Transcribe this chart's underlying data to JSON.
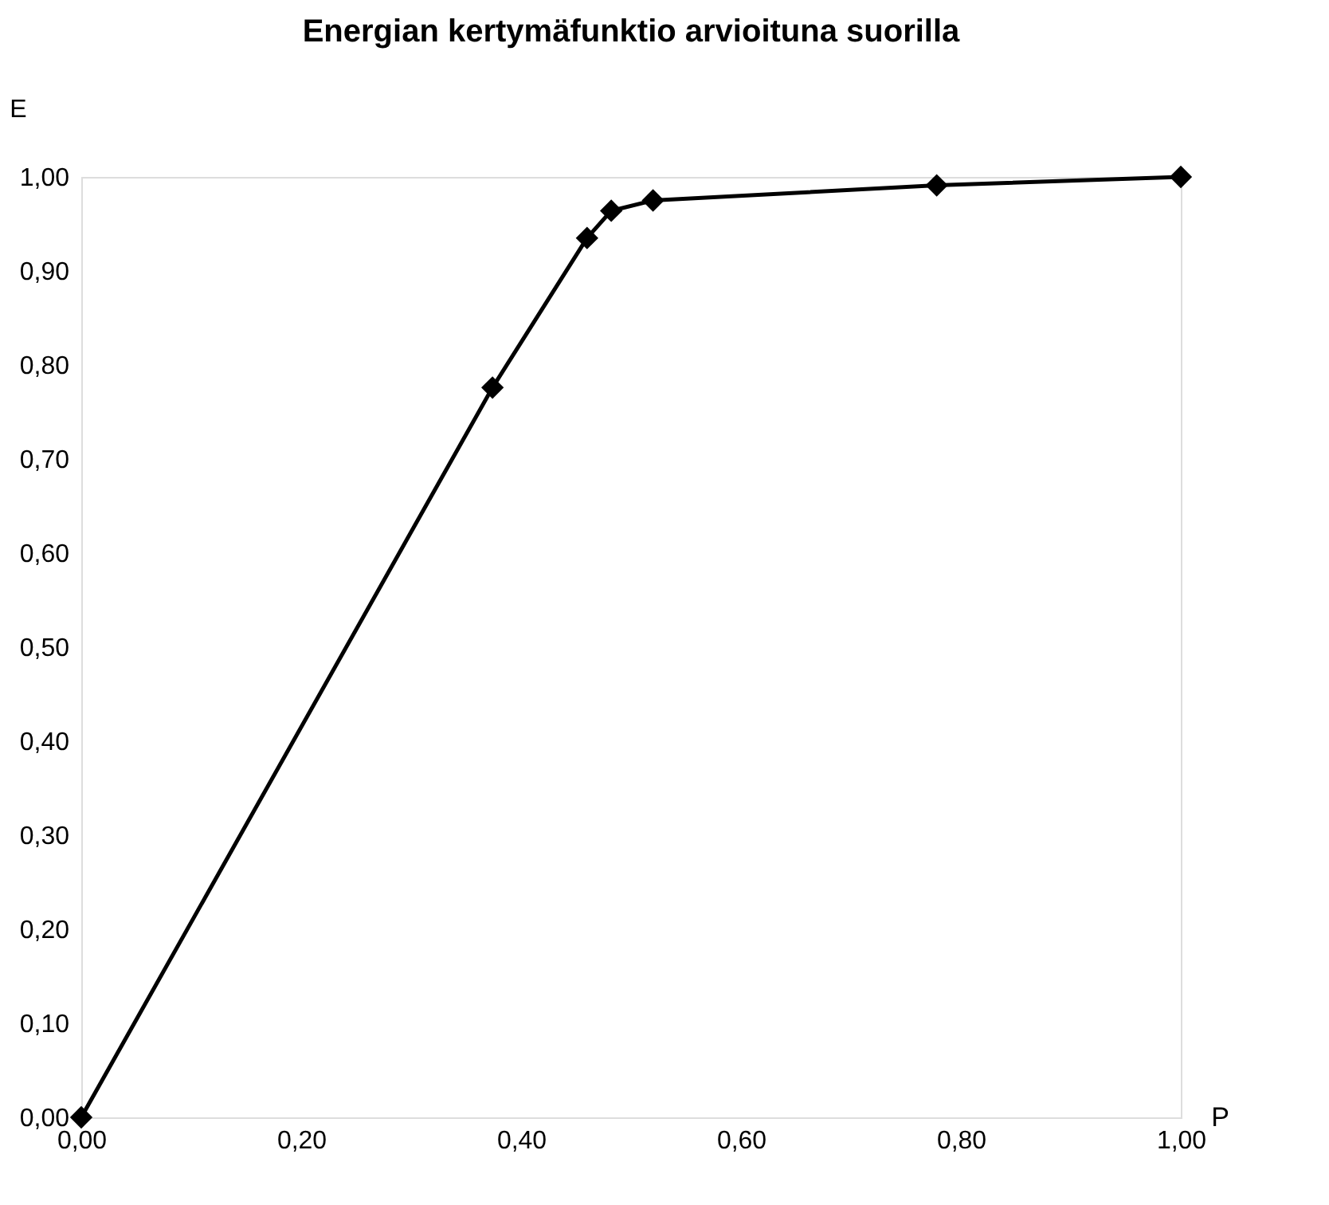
{
  "chart_data": {
    "type": "line",
    "title": "Energian kertymäfunktio arvioituna suorilla",
    "xlabel": "P",
    "ylabel": "E",
    "x": [
      0,
      0.374,
      0.46,
      0.482,
      0.52,
      0.778,
      1.0
    ],
    "series": [
      {
        "color": "#000000",
        "values": [
          0,
          0.776,
          0.935,
          0.964,
          0.975,
          0.991,
          1.0
        ]
      }
    ],
    "xlim": [
      0,
      1
    ],
    "xticks": [
      {
        "value": 0,
        "label": "0,00"
      },
      {
        "value": 0.2,
        "label": "0,20"
      },
      {
        "value": 0.4,
        "label": "0,40"
      },
      {
        "value": 0.6,
        "label": "0,60"
      },
      {
        "value": 0.8,
        "label": "0,80"
      },
      {
        "value": 1,
        "label": "1,00"
      }
    ],
    "ylim": [
      0,
      1
    ],
    "yticks": [
      {
        "value": 0,
        "label": "0,00"
      },
      {
        "value": 0.1,
        "label": "0,10"
      },
      {
        "value": 0.2,
        "label": "0,20"
      },
      {
        "value": 0.3,
        "label": "0,30"
      },
      {
        "value": 0.4,
        "label": "0,40"
      },
      {
        "value": 0.5,
        "label": "0,50"
      },
      {
        "value": 0.6,
        "label": "0,60"
      },
      {
        "value": 0.7,
        "label": "0,70"
      },
      {
        "value": 0.8,
        "label": "0,80"
      },
      {
        "value": 0.9,
        "label": "0,90"
      },
      {
        "value": 1,
        "label": "1,00"
      }
    ],
    "grid": false,
    "marker": "diamond",
    "line_style": "solid"
  }
}
